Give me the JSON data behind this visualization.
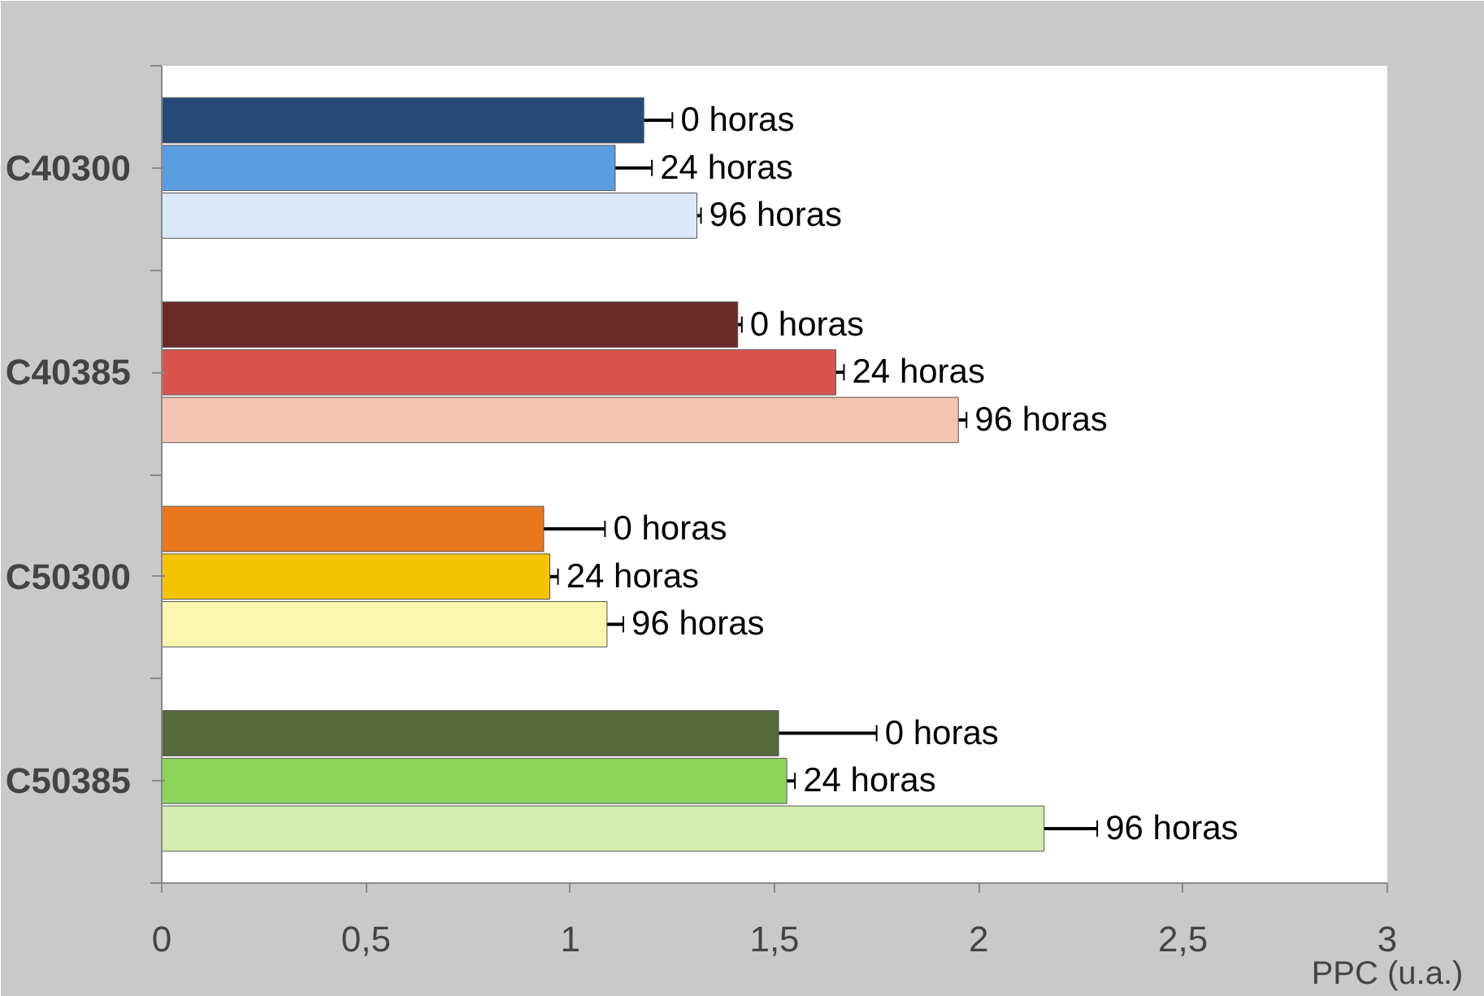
{
  "chart_data": {
    "type": "bar",
    "orientation": "horizontal",
    "xlabel": "PPC (u.a.)",
    "categories": [
      "C40300",
      "C40385",
      "C50300",
      "C50385"
    ],
    "xlim": [
      0,
      3
    ],
    "xticks": [
      0,
      {
        "value": 0.5,
        "label": "0,5"
      },
      1,
      {
        "value": 1.5,
        "label": "1,5"
      },
      2,
      {
        "value": 2.5,
        "label": "2,5"
      },
      3
    ],
    "grid": false,
    "series": [
      {
        "name": "0 horas",
        "colors": [
          "#254a7a",
          "#6b2a2a",
          "#e9771d",
          "#55693a"
        ],
        "values": [
          1.18,
          1.41,
          0.935,
          1.51
        ],
        "errors": [
          0.07,
          0.01,
          0.15,
          0.24
        ]
      },
      {
        "name": "24 horas",
        "colors": [
          "#5a9ee0",
          "#d9534f",
          "#f5c400",
          "#8fd45a"
        ],
        "values": [
          1.11,
          1.65,
          0.95,
          1.53
        ],
        "errors": [
          0.09,
          0.02,
          0.02,
          0.02
        ]
      },
      {
        "name": "96 horas",
        "colors": [
          "#dbe8f7",
          "#f5c4b0",
          "#fbf6b0",
          "#d5ecb0"
        ],
        "values": [
          1.31,
          1.95,
          1.09,
          2.16
        ],
        "errors": [
          0.01,
          0.02,
          0.04,
          0.13
        ]
      }
    ]
  }
}
